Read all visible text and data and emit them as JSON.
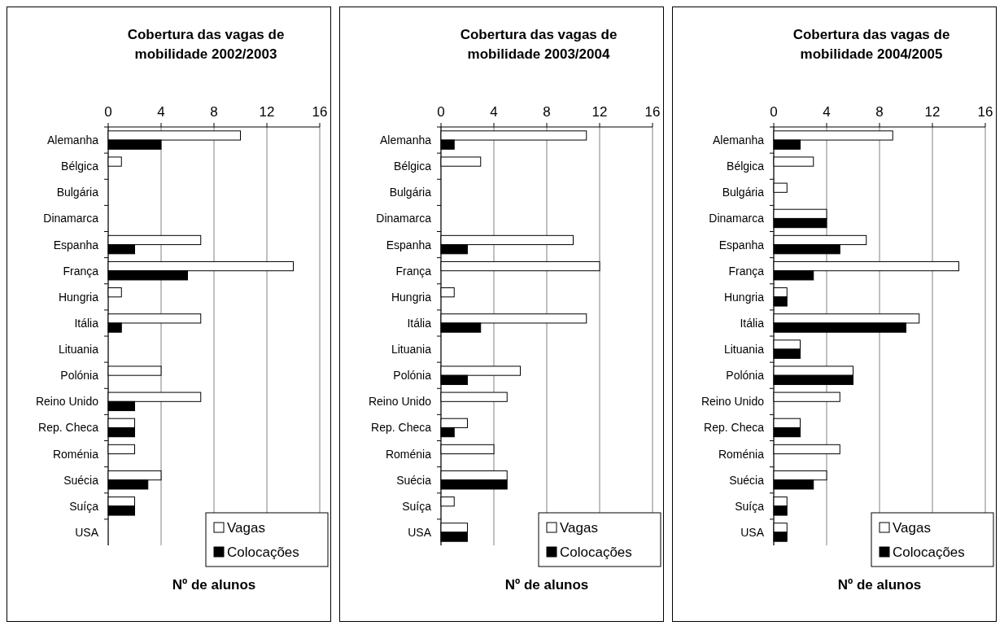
{
  "chart_data": [
    {
      "type": "bar",
      "orientation": "horizontal",
      "title": "Cobertura das vagas de mobilidade 2002/2003",
      "xlabel": "Nº de alunos",
      "categories": [
        "Alemanha",
        "Bélgica",
        "Bulgária",
        "Dinamarca",
        "Espanha",
        "França",
        "Hungria",
        "Itália",
        "Lituania",
        "Polónia",
        "Reino Unido",
        "Rep. Checa",
        "Roménia",
        "Suécia",
        "Suíça",
        "USA"
      ],
      "series": [
        {
          "name": "Vagas",
          "color": "#ffffff",
          "values": [
            10,
            1,
            0,
            0,
            7,
            14,
            1,
            7,
            0,
            4,
            7,
            2,
            2,
            4,
            2,
            0
          ]
        },
        {
          "name": "Colocações",
          "color": "#000000",
          "values": [
            4,
            0,
            0,
            0,
            2,
            6,
            0,
            1,
            0,
            0,
            2,
            2,
            0,
            3,
            2,
            0
          ]
        }
      ],
      "xlim": [
        0,
        16
      ],
      "xticks": [
        0,
        4,
        8,
        12,
        16
      ],
      "grid": "x",
      "legend": "bottom right"
    },
    {
      "type": "bar",
      "orientation": "horizontal",
      "title": "Cobertura das vagas de mobilidade 2003/2004",
      "xlabel": "Nº de alunos",
      "categories": [
        "Alemanha",
        "Bélgica",
        "Bulgária",
        "Dinamarca",
        "Espanha",
        "França",
        "Hungria",
        "Itália",
        "Lituania",
        "Polónia",
        "Reino Unido",
        "Rep. Checa",
        "Roménia",
        "Suécia",
        "Suíça",
        "USA"
      ],
      "series": [
        {
          "name": "Vagas",
          "color": "#ffffff",
          "values": [
            11,
            3,
            0,
            0,
            10,
            12,
            1,
            11,
            0,
            6,
            5,
            2,
            4,
            5,
            1,
            2
          ]
        },
        {
          "name": "Colocações",
          "color": "#000000",
          "values": [
            1,
            0,
            0,
            0,
            2,
            0,
            0,
            3,
            0,
            2,
            0,
            1,
            0,
            5,
            0,
            2
          ]
        }
      ],
      "xlim": [
        0,
        16
      ],
      "xticks": [
        0,
        4,
        8,
        12,
        16
      ],
      "grid": "x",
      "legend": "bottom right"
    },
    {
      "type": "bar",
      "orientation": "horizontal",
      "title": "Cobertura das vagas de mobilidade 2004/2005",
      "xlabel": "Nº de alunos",
      "categories": [
        "Alemanha",
        "Bélgica",
        "Bulgária",
        "Dinamarca",
        "Espanha",
        "França",
        "Hungria",
        "Itália",
        "Lituania",
        "Polónia",
        "Reino Unido",
        "Rep. Checa",
        "Roménia",
        "Suécia",
        "Suíça",
        "USA"
      ],
      "series": [
        {
          "name": "Vagas",
          "color": "#ffffff",
          "values": [
            9,
            3,
            1,
            4,
            7,
            14,
            1,
            11,
            2,
            6,
            5,
            2,
            5,
            4,
            1,
            1
          ]
        },
        {
          "name": "Colocações",
          "color": "#000000",
          "values": [
            2,
            0,
            0,
            4,
            5,
            3,
            1,
            10,
            2,
            6,
            0,
            2,
            0,
            3,
            1,
            1
          ]
        }
      ],
      "xlim": [
        0,
        16
      ],
      "xticks": [
        0,
        4,
        8,
        12,
        16
      ],
      "grid": "x",
      "legend": "bottom right"
    }
  ]
}
